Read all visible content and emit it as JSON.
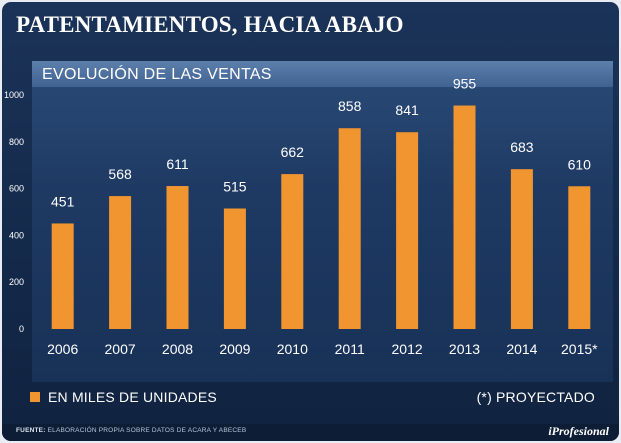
{
  "header": {
    "title": "PATENTAMIENTOS, HACIA ABAJO"
  },
  "chart_data": {
    "type": "bar",
    "title": "EVOLUCIÓN DE LAS VENTAS",
    "categories": [
      "2006",
      "2007",
      "2008",
      "2009",
      "2010",
      "2011",
      "2012",
      "2013",
      "2014",
      "2015*"
    ],
    "values": [
      451,
      568,
      611,
      515,
      662,
      858,
      841,
      955,
      683,
      610
    ],
    "data_labels": [
      "451",
      "568",
      "611",
      "515",
      "662",
      "858",
      "841",
      "955",
      "683",
      "610"
    ],
    "ylim": [
      0,
      1000
    ],
    "yticks": [
      "0",
      "200",
      "400",
      "600",
      "800",
      "1000"
    ],
    "bar_color": "#f0952f",
    "grid": false
  },
  "legend": {
    "label": "EN MILES DE UNIDADES",
    "color": "#f0952f"
  },
  "note": "(*) PROYECTADO",
  "footer": {
    "source_label": "FUENTE:",
    "source_text": "ELABORACIÓN PROPIA SOBRE DATOS DE ACARA Y ABECEB",
    "brand": "iProfesional"
  }
}
